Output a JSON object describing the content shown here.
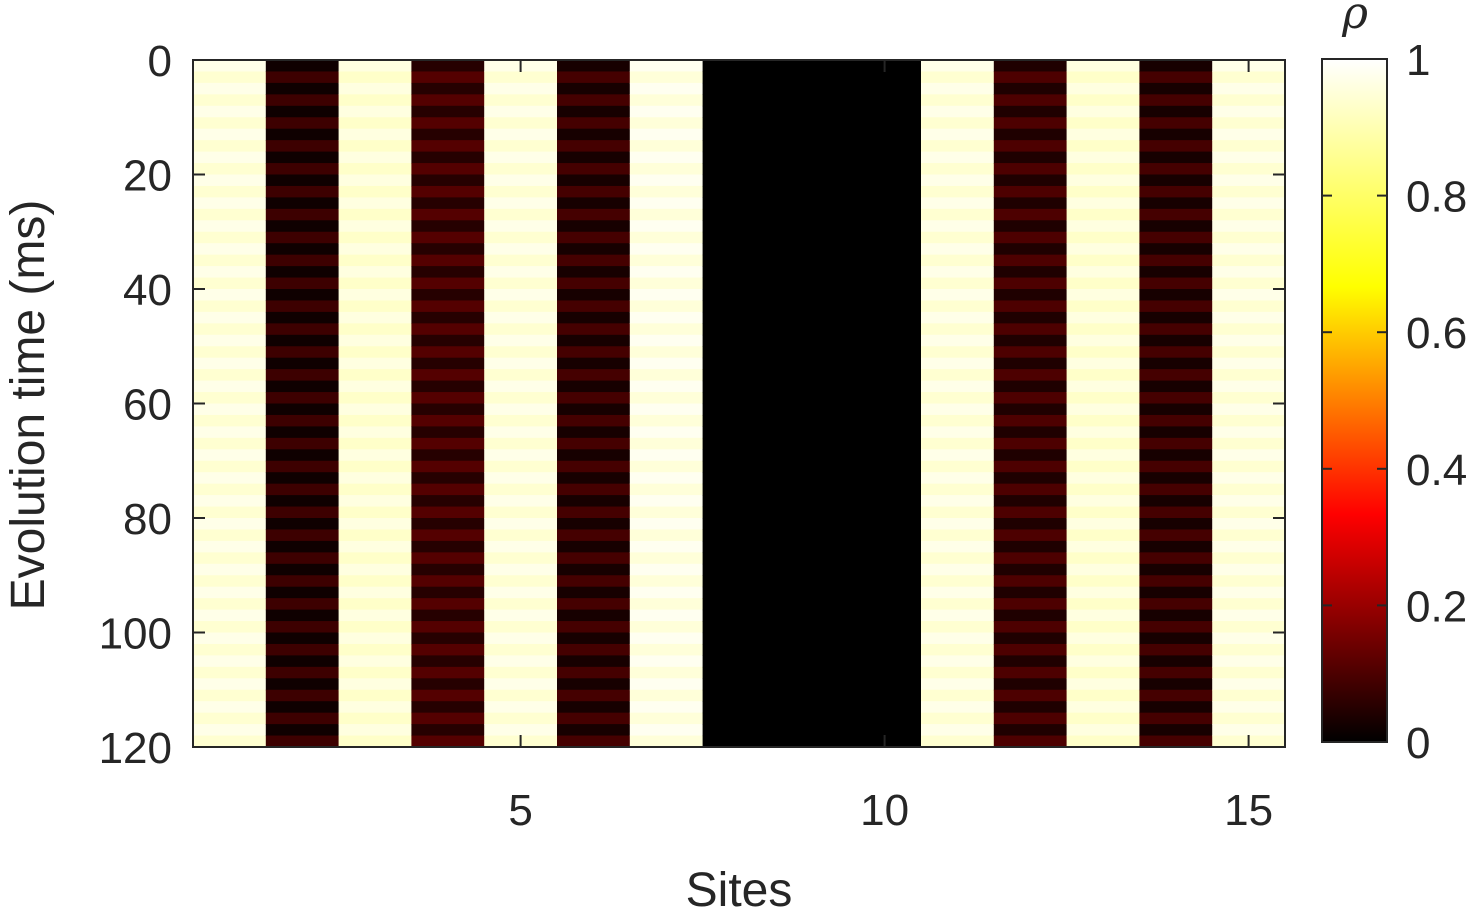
{
  "chart_data": {
    "type": "heatmap",
    "xlabel": "Sites",
    "ylabel": "Evolution time (ms)",
    "x_sites": [
      1,
      2,
      3,
      4,
      5,
      6,
      7,
      8,
      9,
      10,
      11,
      12,
      13,
      14,
      15
    ],
    "xlim": [
      0.5,
      15.5
    ],
    "ylim": [
      0,
      120
    ],
    "y_reversed": true,
    "xticks": [
      5,
      10,
      15
    ],
    "yticks": [
      0,
      20,
      40,
      60,
      80,
      100,
      120
    ],
    "values_by_site": [
      0.97,
      0.05,
      0.96,
      0.08,
      0.97,
      0.06,
      0.98,
      0.0,
      0.0,
      0.0,
      0.97,
      0.07,
      0.96,
      0.06,
      0.97
    ],
    "time_stripe_amplitude": 0.03,
    "colormap": "hot",
    "colormap_stops": [
      "#000000",
      "#ff0000",
      "#ffff00",
      "#ffffff"
    ],
    "colorbar": {
      "label": "ρ",
      "range": [
        0,
        1
      ],
      "ticks": [
        0,
        0.2,
        0.4,
        0.6,
        0.8,
        1
      ],
      "tick_labels": [
        "0",
        "0.2",
        "0.4",
        "0.6",
        "0.8",
        "1"
      ]
    },
    "grid": false
  }
}
